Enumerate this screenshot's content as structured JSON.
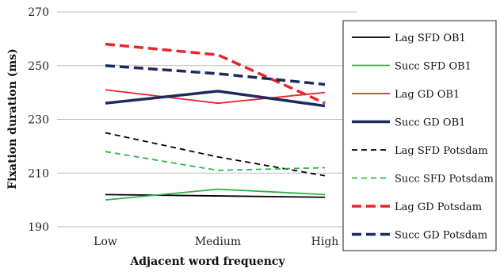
{
  "chart_data": {
    "type": "line",
    "categories": [
      "Low",
      "Medium",
      "High"
    ],
    "xlabel": "Adjacent word frequency",
    "ylabel": "Fixation duration (ms)",
    "ylim": [
      190,
      270
    ],
    "yticks": [
      190,
      210,
      230,
      250,
      270
    ],
    "grid": "horizontal",
    "legend_position": "right",
    "series": [
      {
        "name": "Lag SFD OB1",
        "values": [
          202,
          201.5,
          201
        ],
        "color": "#000000",
        "dash": "solid",
        "weight": "thin"
      },
      {
        "name": "Succ SFD OB1",
        "values": [
          200,
          204,
          202
        ],
        "color": "#2fb34a",
        "dash": "solid",
        "weight": "thin"
      },
      {
        "name": "Lag GD OB1",
        "values": [
          241,
          236,
          240
        ],
        "color": "#e8252b",
        "dash": "solid",
        "weight": "thin"
      },
      {
        "name": "Succ GD OB1",
        "values": [
          236,
          240.5,
          235
        ],
        "color": "#1c2a5c",
        "dash": "solid",
        "weight": "thick"
      },
      {
        "name": "Lag SFD Potsdam",
        "values": [
          225,
          216,
          209
        ],
        "color": "#000000",
        "dash": "dashed",
        "weight": "thin"
      },
      {
        "name": "Succ SFD Potsdam",
        "values": [
          218,
          211,
          212
        ],
        "color": "#2fb34a",
        "dash": "dashed",
        "weight": "thin"
      },
      {
        "name": "Lag GD Potsdam",
        "values": [
          258,
          254,
          236
        ],
        "color": "#e8252b",
        "dash": "dashed",
        "weight": "thick"
      },
      {
        "name": "Succ GD Potsdam",
        "values": [
          250,
          247,
          243
        ],
        "color": "#1c2a5c",
        "dash": "dashed",
        "weight": "thick"
      }
    ]
  }
}
